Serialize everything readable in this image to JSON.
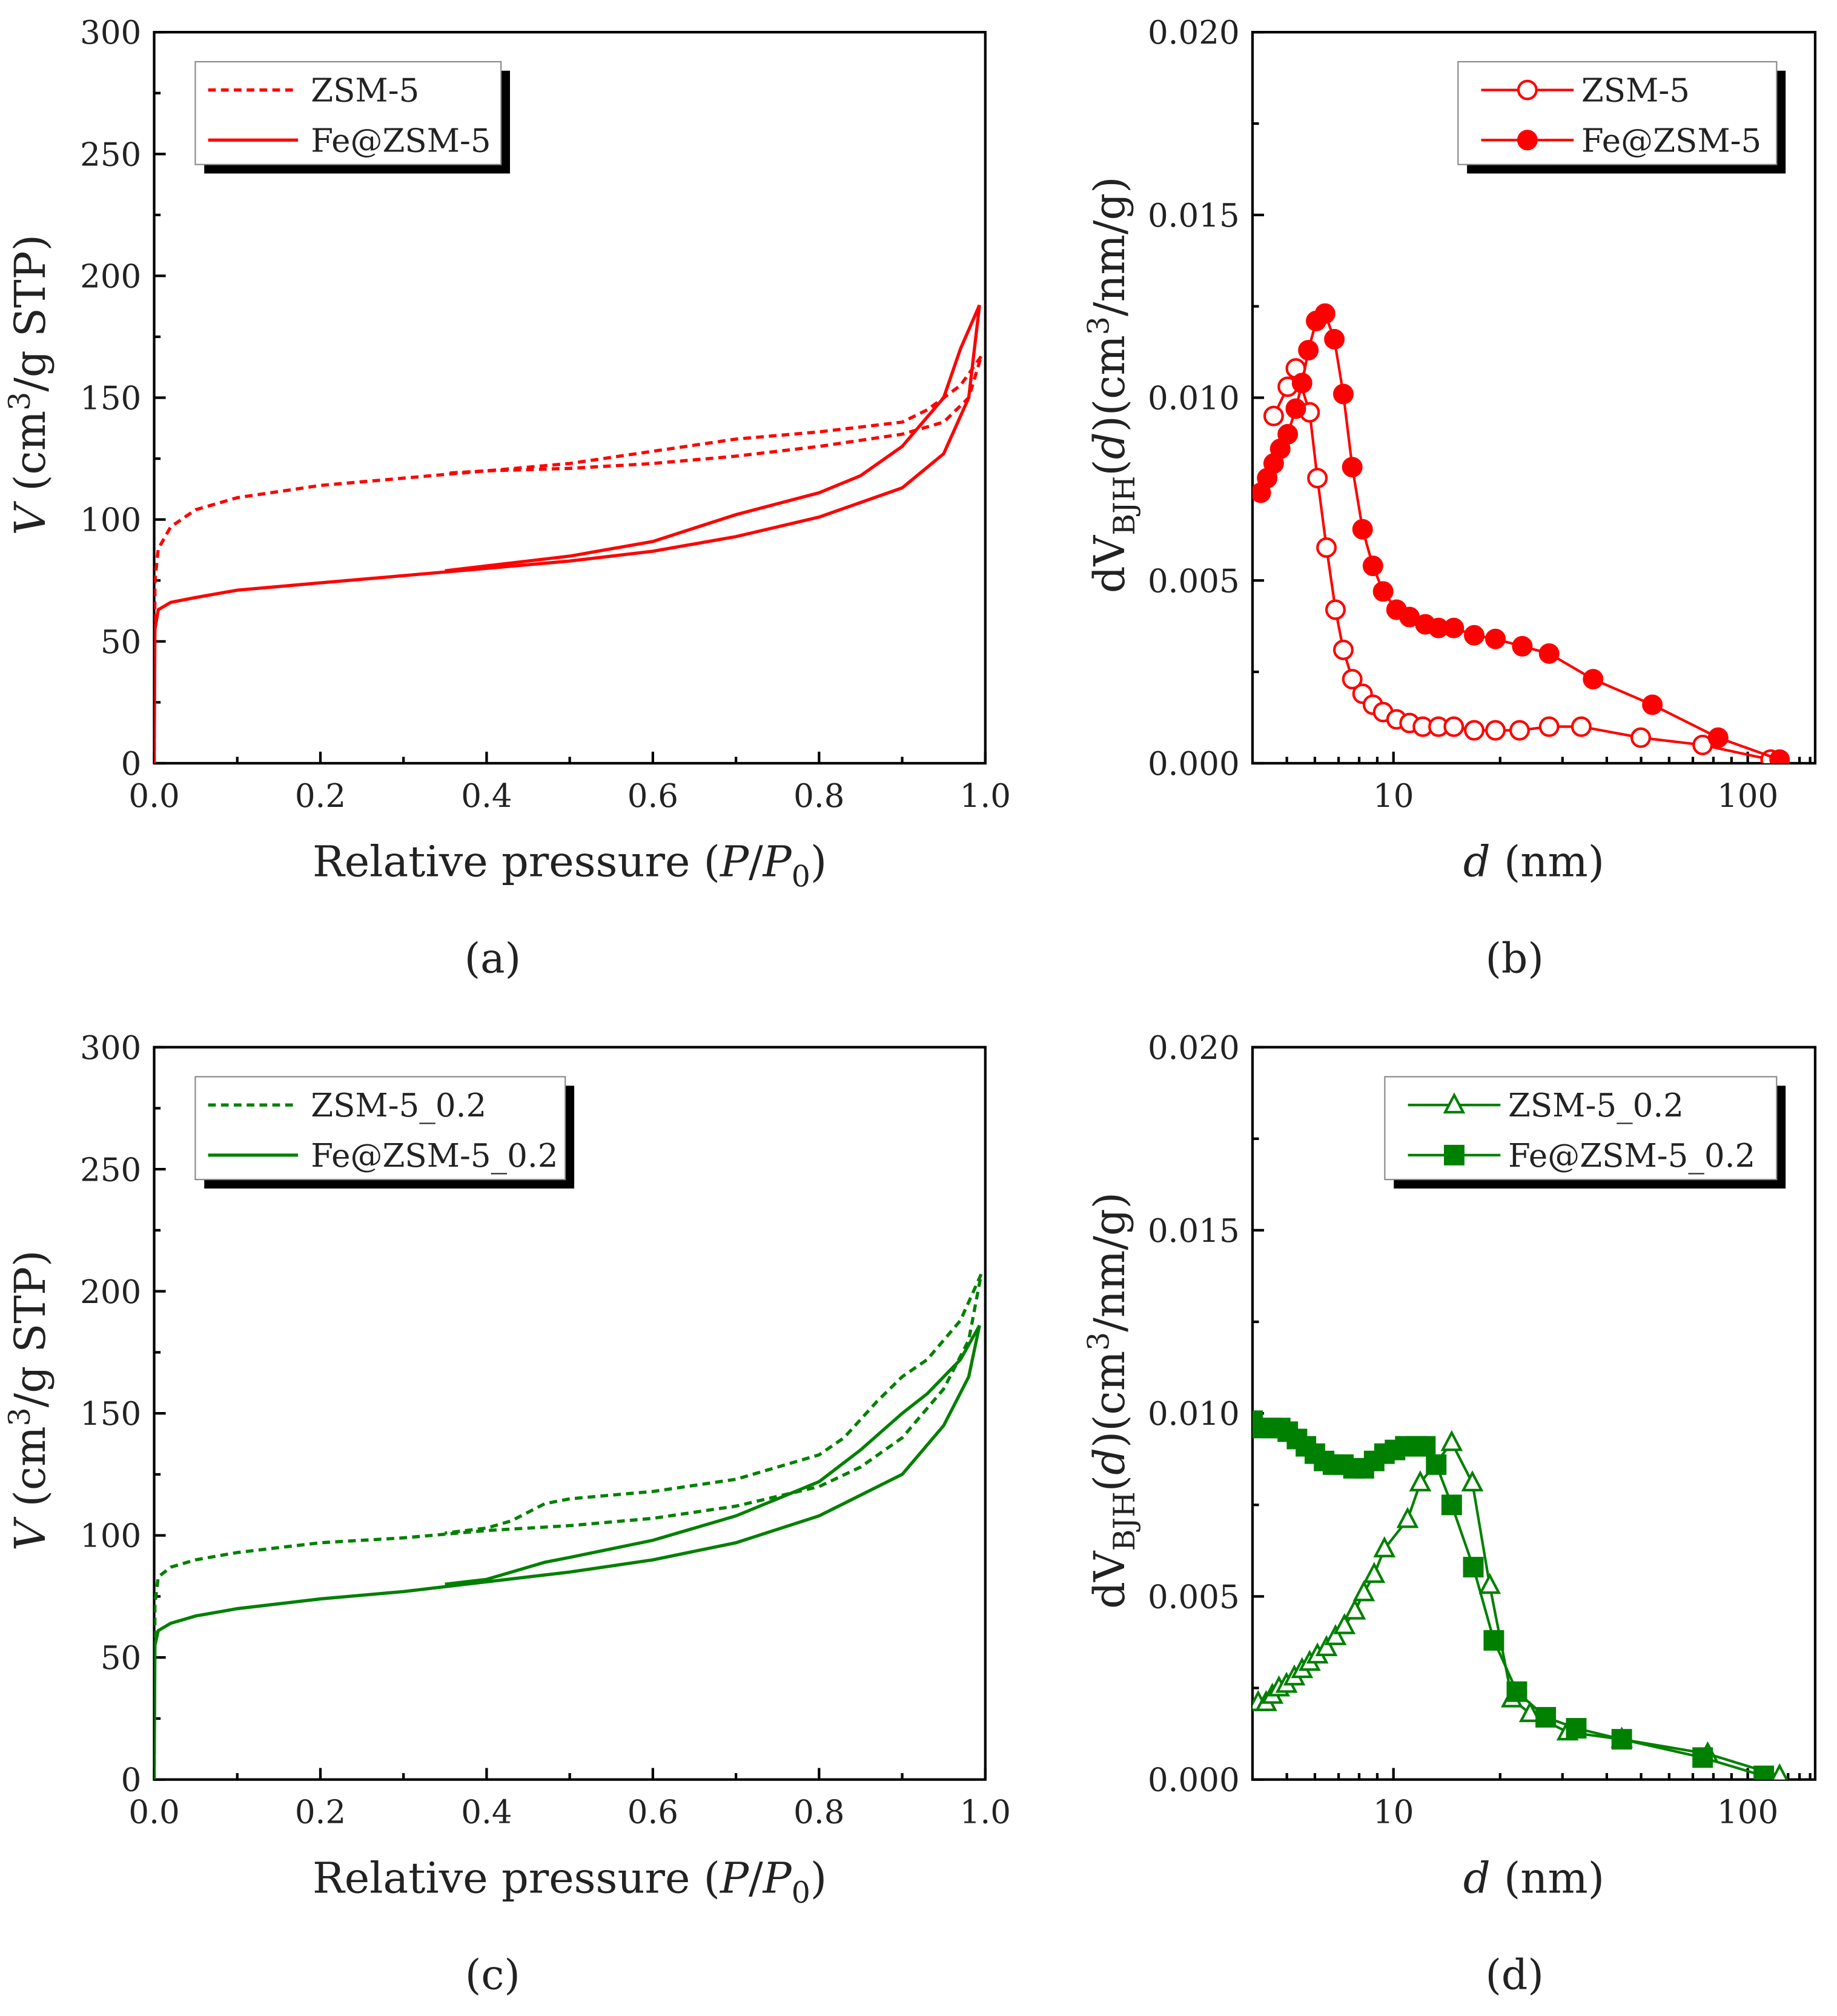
{
  "colors": {
    "red": "#ff0000",
    "green": "#008000",
    "axis": "#000000"
  },
  "chart_data": [
    {
      "panel_label": "(a)",
      "type": "line",
      "xscale": "linear",
      "xlim": [
        0,
        1.0
      ],
      "ylim": [
        0,
        300
      ],
      "xticks": [
        0,
        0.2,
        0.4,
        0.6,
        0.8,
        1.0
      ],
      "xtick_labels": [
        "0.0",
        "0.2",
        "0.4",
        "0.6",
        "0.8",
        "1.0"
      ],
      "yticks": [
        0,
        50,
        100,
        150,
        200,
        250,
        300
      ],
      "ytick_labels": [
        "0",
        "50",
        "100",
        "150",
        "200",
        "250",
        "300"
      ],
      "xlabel": [
        {
          "t": "Relative pressure ("
        },
        {
          "t": "P",
          "i": true
        },
        {
          "t": "/"
        },
        {
          "t": "P",
          "i": true
        },
        {
          "t": "0",
          "sub": true
        },
        {
          "t": ")"
        }
      ],
      "ylabel": [
        {
          "t": "V",
          "i": true
        },
        {
          "t": " (cm"
        },
        {
          "t": "3",
          "sup": true
        },
        {
          "t": "/g STP)"
        }
      ],
      "legend": "top-left",
      "color": "#ff0000",
      "series": [
        {
          "name": "ZSM-5",
          "style": "dashed",
          "branches": [
            [
              [
                0,
                0
              ],
              [
                0.001,
                75
              ],
              [
                0.005,
                88
              ],
              [
                0.02,
                97
              ],
              [
                0.05,
                104
              ],
              [
                0.1,
                109
              ],
              [
                0.2,
                114
              ],
              [
                0.3,
                117
              ],
              [
                0.4,
                120
              ],
              [
                0.5,
                121
              ],
              [
                0.6,
                123
              ],
              [
                0.7,
                126
              ],
              [
                0.8,
                130
              ],
              [
                0.9,
                135
              ],
              [
                0.95,
                140
              ],
              [
                0.98,
                150
              ],
              [
                0.995,
                167
              ]
            ],
            [
              [
                0.995,
                167
              ],
              [
                0.97,
                155
              ],
              [
                0.93,
                145
              ],
              [
                0.9,
                140
              ],
              [
                0.8,
                136
              ],
              [
                0.7,
                133
              ],
              [
                0.6,
                128
              ],
              [
                0.5,
                123
              ],
              [
                0.4,
                120
              ],
              [
                0.35,
                119
              ]
            ]
          ]
        },
        {
          "name": "Fe@ZSM-5",
          "style": "solid",
          "branches": [
            [
              [
                0,
                0
              ],
              [
                0.001,
                55
              ],
              [
                0.005,
                63
              ],
              [
                0.02,
                66
              ],
              [
                0.05,
                68
              ],
              [
                0.1,
                71
              ],
              [
                0.2,
                74
              ],
              [
                0.3,
                77
              ],
              [
                0.4,
                80
              ],
              [
                0.5,
                83
              ],
              [
                0.6,
                87
              ],
              [
                0.7,
                93
              ],
              [
                0.8,
                101
              ],
              [
                0.9,
                113
              ],
              [
                0.95,
                127
              ],
              [
                0.98,
                150
              ],
              [
                0.993,
                188
              ]
            ],
            [
              [
                0.993,
                188
              ],
              [
                0.97,
                170
              ],
              [
                0.95,
                150
              ],
              [
                0.9,
                130
              ],
              [
                0.85,
                118
              ],
              [
                0.8,
                111
              ],
              [
                0.7,
                102
              ],
              [
                0.6,
                91
              ],
              [
                0.5,
                85
              ],
              [
                0.4,
                81
              ],
              [
                0.35,
                79
              ]
            ]
          ]
        }
      ]
    },
    {
      "panel_label": "(b)",
      "type": "scatter",
      "xscale": "log",
      "xlim": [
        4,
        155
      ],
      "ylim": [
        0,
        0.02
      ],
      "xticks": [
        10,
        100
      ],
      "xtick_labels": [
        "10",
        "100"
      ],
      "yticks": [
        0,
        0.005,
        0.01,
        0.015,
        0.02
      ],
      "ytick_labels": [
        "0.000",
        "0.005",
        "0.010",
        "0.015",
        "0.020"
      ],
      "xlabel": [
        {
          "t": "d",
          "i": true
        },
        {
          "t": " (nm)"
        }
      ],
      "ylabel": [
        {
          "t": "dV"
        },
        {
          "t": "BJH",
          "sub": true
        },
        {
          "t": "("
        },
        {
          "t": "d",
          "i": true
        },
        {
          "t": ")(cm"
        },
        {
          "t": "3",
          "sup": true
        },
        {
          "t": "/nm/g)"
        }
      ],
      "legend": "top-right",
      "color": "#ff0000",
      "series": [
        {
          "name": "ZSM-5",
          "marker": "circle-open",
          "x": [
            4.59,
            5.03,
            5.3,
            5.8,
            6.1,
            6.47,
            6.86,
            7.22,
            7.65,
            8.18,
            8.75,
            9.35,
            10.2,
            11.1,
            12.1,
            13.4,
            14.8,
            16.9,
            19.4,
            22.7,
            27.5,
            33.9,
            49.9,
            74.6,
            116
          ],
          "y": [
            0.0095,
            0.0103,
            0.0108,
            0.0096,
            0.0078,
            0.0059,
            0.0042,
            0.0031,
            0.0023,
            0.0019,
            0.0016,
            0.0014,
            0.0012,
            0.0011,
            0.001,
            0.001,
            0.001,
            0.0009,
            0.0009,
            0.0009,
            0.001,
            0.001,
            0.0007,
            0.0005,
            0.0001
          ]
        },
        {
          "name": "Fe@ZSM-5",
          "marker": "circle-filled",
          "x": [
            4.22,
            4.4,
            4.59,
            4.79,
            5.03,
            5.3,
            5.52,
            5.75,
            6.05,
            6.41,
            6.81,
            7.22,
            7.65,
            8.18,
            8.75,
            9.35,
            10.2,
            11.1,
            12.3,
            13.4,
            14.8,
            16.9,
            19.4,
            23.1,
            27.5,
            36.6,
            53.8,
            82.5,
            123
          ],
          "y": [
            0.0074,
            0.0078,
            0.0082,
            0.0086,
            0.009,
            0.0097,
            0.0104,
            0.0113,
            0.0121,
            0.0123,
            0.0116,
            0.0101,
            0.0081,
            0.0064,
            0.0054,
            0.0047,
            0.0042,
            0.004,
            0.0038,
            0.0037,
            0.0037,
            0.0035,
            0.0034,
            0.0032,
            0.003,
            0.0023,
            0.0016,
            0.0007,
            0.0001
          ]
        }
      ]
    },
    {
      "panel_label": "(c)",
      "type": "line",
      "xscale": "linear",
      "xlim": [
        0,
        1.0
      ],
      "ylim": [
        0,
        300
      ],
      "xticks": [
        0,
        0.2,
        0.4,
        0.6,
        0.8,
        1.0
      ],
      "xtick_labels": [
        "0.0",
        "0.2",
        "0.4",
        "0.6",
        "0.8",
        "1.0"
      ],
      "yticks": [
        0,
        50,
        100,
        150,
        200,
        250,
        300
      ],
      "ytick_labels": [
        "0",
        "50",
        "100",
        "150",
        "200",
        "250",
        "300"
      ],
      "xlabel": [
        {
          "t": "Relative pressure ("
        },
        {
          "t": "P",
          "i": true
        },
        {
          "t": "/"
        },
        {
          "t": "P",
          "i": true
        },
        {
          "t": "0",
          "sub": true
        },
        {
          "t": ")"
        }
      ],
      "ylabel": [
        {
          "t": "V",
          "i": true
        },
        {
          "t": " (cm"
        },
        {
          "t": "3",
          "sup": true
        },
        {
          "t": "/g STP)"
        }
      ],
      "legend": "top-left",
      "color": "#008000",
      "series": [
        {
          "name": "ZSM-5_0.2",
          "style": "dashed",
          "branches": [
            [
              [
                0,
                0
              ],
              [
                0.001,
                72
              ],
              [
                0.005,
                83
              ],
              [
                0.02,
                87
              ],
              [
                0.05,
                90
              ],
              [
                0.1,
                93
              ],
              [
                0.2,
                97
              ],
              [
                0.3,
                99
              ],
              [
                0.4,
                102
              ],
              [
                0.5,
                104
              ],
              [
                0.6,
                107
              ],
              [
                0.7,
                112
              ],
              [
                0.8,
                120
              ],
              [
                0.85,
                128
              ],
              [
                0.9,
                140
              ],
              [
                0.95,
                160
              ],
              [
                0.98,
                180
              ],
              [
                0.995,
                207
              ]
            ],
            [
              [
                0.995,
                207
              ],
              [
                0.97,
                188
              ],
              [
                0.93,
                172
              ],
              [
                0.9,
                165
              ],
              [
                0.87,
                155
              ],
              [
                0.83,
                140
              ],
              [
                0.8,
                133
              ],
              [
                0.7,
                123
              ],
              [
                0.6,
                118
              ],
              [
                0.5,
                115
              ],
              [
                0.47,
                113
              ],
              [
                0.43,
                106
              ],
              [
                0.4,
                103
              ],
              [
                0.35,
                101
              ]
            ]
          ]
        },
        {
          "name": "Fe@ZSM-5_0.2",
          "style": "solid",
          "branches": [
            [
              [
                0,
                0
              ],
              [
                0.001,
                55
              ],
              [
                0.005,
                61
              ],
              [
                0.02,
                64
              ],
              [
                0.05,
                67
              ],
              [
                0.1,
                70
              ],
              [
                0.2,
                74
              ],
              [
                0.3,
                77
              ],
              [
                0.4,
                81
              ],
              [
                0.5,
                85
              ],
              [
                0.6,
                90
              ],
              [
                0.7,
                97
              ],
              [
                0.8,
                108
              ],
              [
                0.9,
                125
              ],
              [
                0.95,
                145
              ],
              [
                0.98,
                165
              ],
              [
                0.993,
                186
              ]
            ],
            [
              [
                0.993,
                186
              ],
              [
                0.97,
                172
              ],
              [
                0.93,
                158
              ],
              [
                0.9,
                150
              ],
              [
                0.85,
                135
              ],
              [
                0.8,
                122
              ],
              [
                0.7,
                108
              ],
              [
                0.6,
                98
              ],
              [
                0.5,
                91
              ],
              [
                0.47,
                89
              ],
              [
                0.43,
                85
              ],
              [
                0.4,
                82
              ],
              [
                0.35,
                80
              ]
            ]
          ]
        }
      ]
    },
    {
      "panel_label": "(d)",
      "type": "scatter",
      "xscale": "log",
      "xlim": [
        4,
        155
      ],
      "ylim": [
        0,
        0.02
      ],
      "xticks": [
        10,
        100
      ],
      "xtick_labels": [
        "10",
        "100"
      ],
      "yticks": [
        0,
        0.005,
        0.01,
        0.015,
        0.02
      ],
      "ytick_labels": [
        "0.000",
        "0.005",
        "0.010",
        "0.015",
        "0.020"
      ],
      "xlabel": [
        {
          "t": "d",
          "i": true
        },
        {
          "t": " (nm)"
        }
      ],
      "ylabel": [
        {
          "t": "dV"
        },
        {
          "t": "BJH",
          "sub": true
        },
        {
          "t": "("
        },
        {
          "t": "d",
          "i": true
        },
        {
          "t": ")(cm"
        },
        {
          "t": "3",
          "sup": true
        },
        {
          "t": "/nm/g)"
        }
      ],
      "legend": "top-right",
      "color": "#008000",
      "series": [
        {
          "name": "ZSM-5_0.2",
          "marker": "triangle-open",
          "x": [
            4.15,
            4.37,
            4.55,
            4.75,
            4.99,
            5.25,
            5.52,
            5.8,
            6.1,
            6.47,
            6.86,
            7.27,
            7.78,
            8.25,
            8.82,
            9.43,
            10.96,
            11.9,
            14.6,
            16.7,
            18.7,
            21.6,
            24.3,
            31.0,
            44.1,
            77.1,
            123
          ],
          "y": [
            0.0021,
            0.0021,
            0.0023,
            0.0025,
            0.0026,
            0.0028,
            0.003,
            0.0032,
            0.0034,
            0.0036,
            0.0039,
            0.0042,
            0.0046,
            0.0051,
            0.0056,
            0.0063,
            0.0071,
            0.0081,
            0.0092,
            0.0081,
            0.0053,
            0.0022,
            0.0018,
            0.0013,
            0.0011,
            0.0007,
            0.0001
          ]
        },
        {
          "name": "Fe@ZSM-5_0.2",
          "marker": "square-filled",
          "x": [
            4.0,
            4.26,
            4.52,
            4.79,
            5.03,
            5.34,
            5.66,
            6.0,
            6.37,
            6.75,
            7.22,
            7.71,
            8.25,
            8.82,
            9.43,
            10.1,
            10.8,
            11.6,
            12.3,
            13.2,
            14.6,
            16.8,
            19.2,
            22.3,
            26.9,
            32.8,
            44.1,
            74.6,
            111
          ],
          "y": [
            0.0098,
            0.0096,
            0.0096,
            0.0096,
            0.0095,
            0.0093,
            0.0091,
            0.0089,
            0.0087,
            0.0086,
            0.0086,
            0.0085,
            0.0085,
            0.0087,
            0.0089,
            0.009,
            0.0091,
            0.0091,
            0.0091,
            0.0086,
            0.0075,
            0.0058,
            0.0038,
            0.0024,
            0.0017,
            0.0014,
            0.0011,
            0.0006,
            0.0001
          ]
        }
      ]
    }
  ]
}
